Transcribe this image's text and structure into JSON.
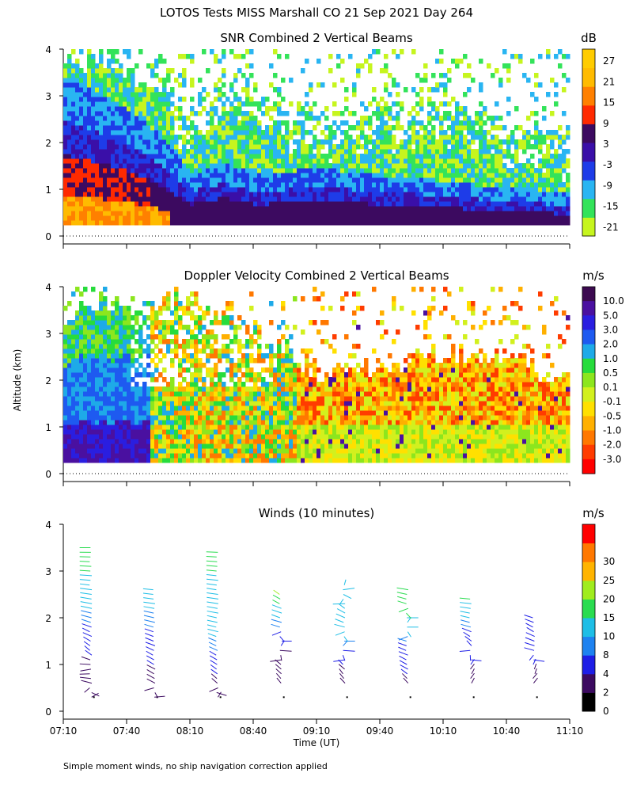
{
  "figure": {
    "title": "LOTOS Tests MISS Marshall CO  21 Sep 2021 Day 264",
    "ylabel": "Altitude (km)",
    "xlabel": "Time (UT)",
    "footnote": "Simple moment winds, no ship navigation correction applied",
    "time_ticks": [
      "07:10",
      "07:40",
      "08:10",
      "08:40",
      "09:10",
      "09:40",
      "10:10",
      "10:40",
      "11:10"
    ],
    "alt_ticks": [
      "0",
      "1",
      "2",
      "3",
      "4"
    ]
  },
  "chart_data": [
    {
      "type": "heatmap",
      "title": "SNR Combined 2 Vertical Beams",
      "xlabel": "",
      "ylabel": "Altitude (km)",
      "xlim": [
        "07:10",
        "11:10"
      ],
      "ylim": [
        0,
        4
      ],
      "colorbar": {
        "unit": "dB",
        "levels": [
          "-21",
          "-15",
          "-9",
          "-3",
          "3",
          "9",
          "15",
          "21",
          "27"
        ],
        "colors": [
          "#c6f51e",
          "#33e35a",
          "#29b5f2",
          "#1e3ce8",
          "#3a0fa8",
          "#3c0a60",
          "#ff2a00",
          "#ff8000",
          "#ffbb00",
          "#ffcc00"
        ]
      },
      "pattern": [
        {
          "time": "07:10",
          "top_km": 3.6,
          "strong_km": 2.4
        },
        {
          "time": "07:25",
          "top_km": 3.8,
          "strong_km": 2.2
        },
        {
          "time": "07:40",
          "top_km": 3.5,
          "strong_km": 1.9
        },
        {
          "time": "07:55",
          "top_km": 3.2,
          "strong_km": 1.5
        },
        {
          "time": "08:10",
          "top_km": 2.6,
          "strong_km": 0.9
        },
        {
          "time": "08:25",
          "top_km": 3.3,
          "strong_km": 1.1
        },
        {
          "time": "08:40",
          "top_km": 3.1,
          "strong_km": 0.9
        },
        {
          "time": "09:10",
          "top_km": 2.4,
          "strong_km": 1.0
        },
        {
          "time": "09:40",
          "top_km": 2.6,
          "strong_km": 0.9
        },
        {
          "time": "10:10",
          "top_km": 2.8,
          "strong_km": 0.8
        },
        {
          "time": "10:40",
          "top_km": 2.5,
          "strong_km": 0.7
        },
        {
          "time": "11:10",
          "top_km": 1.9,
          "strong_km": 0.6
        }
      ]
    },
    {
      "type": "heatmap",
      "title": "Doppler Velocity Combined 2 Vertical Beams",
      "xlabel": "",
      "ylabel": "Altitude (km)",
      "xlim": [
        "07:10",
        "11:10"
      ],
      "ylim": [
        0,
        4
      ],
      "colorbar": {
        "unit": "m/s",
        "levels": [
          "10.0",
          "5.0",
          "3.0",
          "2.0",
          "1.0",
          "0.5",
          "0.1",
          "-0.1",
          "-0.5",
          "-1.0",
          "-2.0",
          "-3.0"
        ],
        "colors": [
          "#3c0a50",
          "#4a10a0",
          "#2a1ee0",
          "#1e5af0",
          "#1eaae8",
          "#27dc3c",
          "#8ce61e",
          "#d2f01e",
          "#ffe000",
          "#ffb000",
          "#ff7800",
          "#ff3c00",
          "#ff0000"
        ]
      },
      "pattern": [
        {
          "time": "07:10",
          "top_km": 3.4,
          "regime": "updraft"
        },
        {
          "time": "07:40",
          "top_km": 3.6,
          "regime": "updraft"
        },
        {
          "time": "08:10",
          "top_km": 3.8,
          "regime": "mixed"
        },
        {
          "time": "08:40",
          "top_km": 3.1,
          "regime": "mixed"
        },
        {
          "time": "09:10",
          "top_km": 2.1,
          "regime": "downdraft"
        },
        {
          "time": "09:40",
          "top_km": 2.3,
          "regime": "downdraft"
        },
        {
          "time": "10:10",
          "top_km": 2.5,
          "regime": "downdraft"
        },
        {
          "time": "10:40",
          "top_km": 2.4,
          "regime": "downdraft"
        },
        {
          "time": "11:10",
          "top_km": 1.9,
          "regime": "downdraft"
        }
      ]
    },
    {
      "type": "scatter",
      "title": "Winds (10 minutes)",
      "xlabel": "Time (UT)",
      "ylabel": "Altitude (km)",
      "xlim": [
        "07:10",
        "11:10"
      ],
      "ylim": [
        0,
        4
      ],
      "colorbar": {
        "unit": "m/s",
        "levels": [
          "0",
          "2",
          "4",
          "8",
          "10",
          "15",
          "20",
          "25",
          "30"
        ],
        "colors": [
          "#000000",
          "#3c0a60",
          "#1e1ee6",
          "#1e82f0",
          "#1ebee6",
          "#2adc50",
          "#a0ec1e",
          "#ffb400",
          "#ff7800",
          "#ff0000"
        ]
      },
      "profiles": [
        {
          "time": "07:20",
          "alt_min_km": 0.25,
          "alt_max_km": 3.6,
          "barbs": [
            {
              "alt_km": 0.3,
              "speed_ms": 3,
              "dir_deg": 45
            },
            {
              "alt_km": 0.6,
              "speed_ms": 3,
              "dir_deg": 300
            },
            {
              "alt_km": 0.9,
              "speed_ms": 2,
              "dir_deg": 250
            },
            {
              "alt_km": 1.2,
              "speed_ms": 4,
              "dir_deg": 330
            },
            {
              "alt_km": 1.6,
              "speed_ms": 6,
              "dir_deg": 315
            },
            {
              "alt_km": 2.0,
              "speed_ms": 9,
              "dir_deg": 300
            },
            {
              "alt_km": 2.4,
              "speed_ms": 11,
              "dir_deg": 290
            },
            {
              "alt_km": 2.8,
              "speed_ms": 14,
              "dir_deg": 280
            },
            {
              "alt_km": 3.2,
              "speed_ms": 16,
              "dir_deg": 275
            },
            {
              "alt_km": 3.5,
              "speed_ms": 17,
              "dir_deg": 270
            }
          ]
        },
        {
          "time": "07:50",
          "alt_min_km": 0.25,
          "alt_max_km": 2.8,
          "barbs": [
            {
              "alt_km": 0.3,
              "speed_ms": 2,
              "dir_deg": 80
            },
            {
              "alt_km": 0.6,
              "speed_ms": 3,
              "dir_deg": 320
            },
            {
              "alt_km": 1.0,
              "speed_ms": 4,
              "dir_deg": 320
            },
            {
              "alt_km": 1.4,
              "speed_ms": 5,
              "dir_deg": 310
            },
            {
              "alt_km": 1.8,
              "speed_ms": 8,
              "dir_deg": 300
            },
            {
              "alt_km": 2.2,
              "speed_ms": 10,
              "dir_deg": 290
            },
            {
              "alt_km": 2.6,
              "speed_ms": 11,
              "dir_deg": 280
            }
          ]
        },
        {
          "time": "08:20",
          "alt_min_km": 0.25,
          "alt_max_km": 3.6,
          "barbs": [
            {
              "alt_km": 0.3,
              "speed_ms": 2,
              "dir_deg": 20
            },
            {
              "alt_km": 0.6,
              "speed_ms": 3,
              "dir_deg": 330
            },
            {
              "alt_km": 1.0,
              "speed_ms": 5,
              "dir_deg": 320
            },
            {
              "alt_km": 1.4,
              "speed_ms": 9,
              "dir_deg": 310
            },
            {
              "alt_km": 1.8,
              "speed_ms": 12,
              "dir_deg": 295
            },
            {
              "alt_km": 2.2,
              "speed_ms": 13,
              "dir_deg": 290
            },
            {
              "alt_km": 2.6,
              "speed_ms": 14,
              "dir_deg": 285
            },
            {
              "alt_km": 3.0,
              "speed_ms": 15,
              "dir_deg": 280
            },
            {
              "alt_km": 3.4,
              "speed_ms": 16,
              "dir_deg": 275
            }
          ]
        },
        {
          "time": "08:50",
          "alt_min_km": 0.5,
          "alt_max_km": 2.6,
          "barbs": [
            {
              "alt_km": 0.6,
              "speed_ms": 3,
              "dir_deg": 340
            },
            {
              "alt_km": 1.0,
              "speed_ms": 3,
              "dir_deg": 330
            },
            {
              "alt_km": 1.4,
              "speed_ms": 4,
              "dir_deg": 20
            },
            {
              "alt_km": 1.8,
              "speed_ms": 9,
              "dir_deg": 300
            },
            {
              "alt_km": 2.2,
              "speed_ms": 12,
              "dir_deg": 310
            },
            {
              "alt_km": 2.5,
              "speed_ms": 22,
              "dir_deg": 320
            }
          ]
        },
        {
          "time": "09:20",
          "alt_min_km": 0.5,
          "alt_max_km": 2.8,
          "barbs": [
            {
              "alt_km": 0.6,
              "speed_ms": 3,
              "dir_deg": 340
            },
            {
              "alt_km": 1.0,
              "speed_ms": 4,
              "dir_deg": 330
            },
            {
              "alt_km": 1.4,
              "speed_ms": 9,
              "dir_deg": 20
            },
            {
              "alt_km": 1.8,
              "speed_ms": 12,
              "dir_deg": 300
            },
            {
              "alt_km": 2.2,
              "speed_ms": 13,
              "dir_deg": 330
            },
            {
              "alt_km": 2.7,
              "speed_ms": 14,
              "dir_deg": 10
            }
          ]
        },
        {
          "time": "09:50",
          "alt_min_km": 0.5,
          "alt_max_km": 2.7,
          "barbs": [
            {
              "alt_km": 0.6,
              "speed_ms": 3,
              "dir_deg": 340
            },
            {
              "alt_km": 0.9,
              "speed_ms": 5,
              "dir_deg": 320
            },
            {
              "alt_km": 1.2,
              "speed_ms": 6,
              "dir_deg": 310
            },
            {
              "alt_km": 1.5,
              "speed_ms": 8,
              "dir_deg": 300
            },
            {
              "alt_km": 1.9,
              "speed_ms": 14,
              "dir_deg": 20
            },
            {
              "alt_km": 2.3,
              "speed_ms": 16,
              "dir_deg": 300
            },
            {
              "alt_km": 2.6,
              "speed_ms": 15,
              "dir_deg": 290
            }
          ]
        },
        {
          "time": "10:20",
          "alt_min_km": 0.5,
          "alt_max_km": 2.5,
          "barbs": [
            {
              "alt_km": 0.6,
              "speed_ms": 3,
              "dir_deg": 20
            },
            {
              "alt_km": 1.0,
              "speed_ms": 4,
              "dir_deg": 20
            },
            {
              "alt_km": 1.4,
              "speed_ms": 5,
              "dir_deg": 340
            },
            {
              "alt_km": 1.8,
              "speed_ms": 8,
              "dir_deg": 300
            },
            {
              "alt_km": 2.1,
              "speed_ms": 12,
              "dir_deg": 290
            },
            {
              "alt_km": 2.4,
              "speed_ms": 16,
              "dir_deg": 280
            }
          ]
        },
        {
          "time": "10:50",
          "alt_min_km": 0.5,
          "alt_max_km": 2.1,
          "barbs": [
            {
              "alt_km": 0.6,
              "speed_ms": 3,
              "dir_deg": 20
            },
            {
              "alt_km": 1.0,
              "speed_ms": 4,
              "dir_deg": 10
            },
            {
              "alt_km": 1.3,
              "speed_ms": 6,
              "dir_deg": 300
            },
            {
              "alt_km": 1.7,
              "speed_ms": 5,
              "dir_deg": 320
            },
            {
              "alt_km": 2.0,
              "speed_ms": 4,
              "dir_deg": 300
            }
          ]
        }
      ]
    }
  ]
}
